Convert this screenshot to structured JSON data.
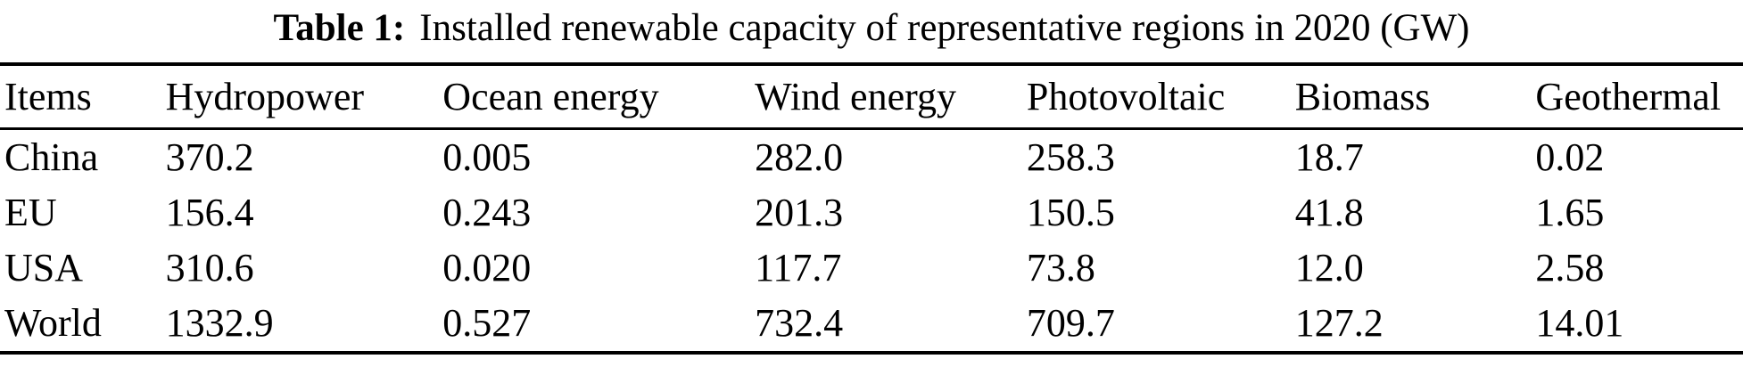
{
  "caption": {
    "label": "Table 1:",
    "text": "Installed renewable capacity of representative regions in 2020 (GW)"
  },
  "table": {
    "columns": [
      "Items",
      "Hydropower",
      "Ocean energy",
      "Wind energy",
      "Photovoltaic",
      "Biomass",
      "Geothermal"
    ],
    "rows": [
      {
        "cells": [
          "China",
          "370.2",
          "0.005",
          "282.0",
          "258.3",
          "18.7",
          "0.02"
        ]
      },
      {
        "cells": [
          "EU",
          "156.4",
          "0.243",
          "201.3",
          "150.5",
          "41.8",
          "1.65"
        ]
      },
      {
        "cells": [
          "USA",
          "310.6",
          "0.020",
          "117.7",
          "73.8",
          "12.0",
          "2.58"
        ]
      },
      {
        "cells": [
          "World",
          "1332.9",
          "0.527",
          "732.4",
          "709.7",
          "127.2",
          "14.01"
        ]
      }
    ]
  },
  "colors": {
    "text": "#000000",
    "background": "#ffffff",
    "rule": "#000000"
  }
}
